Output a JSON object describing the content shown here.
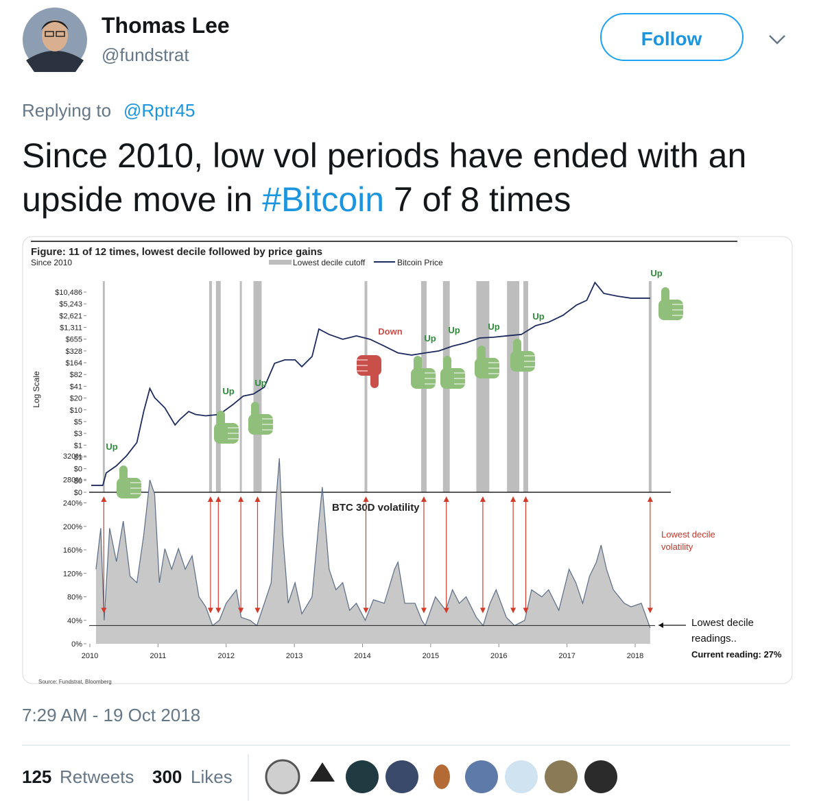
{
  "author": {
    "name": "Thomas Lee",
    "handle": "@fundstrat"
  },
  "follow_button": "Follow",
  "reply": {
    "prefix": "Replying to",
    "to": "@Rptr45"
  },
  "tweet_text": [
    "Since 2010, low vol periods have ended with an upside move in ",
    "#Bitcoin",
    " 7 of 8 times"
  ],
  "chart_data": {
    "type": "line",
    "title": "Figure: 11 of 12 times, lowest decile followed by price gains",
    "subtitle": "Since 2010",
    "y_label": "Log Scale",
    "source": "Source: Fundstrat, Bloomberg",
    "xlim": [
      2010,
      2018
    ],
    "xticks": [
      2010,
      2011,
      2012,
      2013,
      2014,
      2015,
      2016,
      2017,
      2018
    ],
    "log_scale": true,
    "ylim": [
      0.08,
      20000
    ],
    "yticks": [
      {
        "value": 10486,
        "label": "$10,486"
      },
      {
        "value": 5243,
        "label": "$5,243"
      },
      {
        "value": 2621.5,
        "label": "$2,621"
      },
      {
        "value": 1310.75,
        "label": "$1,311"
      },
      {
        "value": 655.375,
        "label": "$655"
      },
      {
        "value": 327.6875,
        "label": "$328"
      },
      {
        "value": 163.84375,
        "label": "$164"
      },
      {
        "value": 81.921875,
        "label": "$82"
      },
      {
        "value": 40.9609375,
        "label": "$41"
      },
      {
        "value": 20.48046875,
        "label": "$20"
      },
      {
        "value": 10.240234375,
        "label": "$10"
      },
      {
        "value": 5.1201171875,
        "label": "$5"
      },
      {
        "value": 2.56005859375,
        "label": "$3"
      },
      {
        "value": 1.280029296875,
        "label": "$1"
      },
      {
        "value": 0.6400146484375,
        "label": "$1"
      },
      {
        "value": 0.32000732421875,
        "label": "$0"
      },
      {
        "value": 0.160003662109375,
        "label": "$0"
      },
      {
        "value": 0.0800018310546875,
        "label": "$0"
      }
    ],
    "y2lim": [
      0,
      320
    ],
    "y2ticks": [
      {
        "value": 0,
        "label": "0%"
      },
      {
        "value": 40,
        "label": "40%"
      },
      {
        "value": 80,
        "label": "80%"
      },
      {
        "value": 120,
        "label": "120%"
      },
      {
        "value": 160,
        "label": "160%"
      },
      {
        "value": 200,
        "label": "200%"
      },
      {
        "value": 240,
        "label": "240%"
      },
      {
        "value": 280,
        "label": "280%"
      },
      {
        "value": 320,
        "label": "320%"
      }
    ],
    "series": [
      {
        "name": "Bitcoin Price",
        "color": "#1c2a5e",
        "x": [
          2010.02,
          2010.19,
          2010.24,
          2010.39,
          2010.54,
          2010.69,
          2010.79,
          2010.88,
          2010.95,
          2011.1,
          2011.25,
          2011.32,
          2011.45,
          2011.55,
          2011.7,
          2011.9,
          2012.1,
          2012.25,
          2012.4,
          2012.56,
          2012.71,
          2012.86,
          2013.01,
          2013.11,
          2013.26,
          2013.36,
          2013.51,
          2013.71,
          2013.91,
          2014.11,
          2014.32,
          2014.52,
          2014.72,
          2014.92,
          2015.12,
          2015.32,
          2015.52,
          2015.72,
          2015.92,
          2016.11,
          2016.33,
          2016.54,
          2016.73,
          2016.94,
          2017.14,
          2017.29,
          2017.41,
          2017.54,
          2017.74,
          2017.94,
          2018.22
        ],
        "values": [
          0.12,
          0.12,
          0.25,
          0.38,
          0.69,
          1.5,
          9.3,
          36,
          21,
          11.5,
          4.2,
          5.8,
          9.3,
          7.8,
          7.2,
          7.8,
          14,
          23,
          26,
          39,
          158,
          194,
          194,
          130,
          237,
          1188,
          865,
          652,
          795,
          652,
          435,
          292,
          257,
          292,
          328,
          435,
          532,
          701,
          734,
          795,
          865,
          1455,
          1780,
          2660,
          4890,
          6460,
          18400,
          9680,
          8230,
          7310,
          7310
        ]
      },
      {
        "name": "BTC 30D volatility",
        "color": "#5a6b86",
        "axis": "y2",
        "x": [
          2010.09,
          2010.16,
          2010.21,
          2010.29,
          2010.39,
          2010.49,
          2010.59,
          2010.69,
          2010.79,
          2010.88,
          2010.95,
          2011.02,
          2011.1,
          2011.2,
          2011.3,
          2011.4,
          2011.5,
          2011.6,
          2011.7,
          2011.8,
          2011.9,
          2012.0,
          2012.15,
          2012.22,
          2012.35,
          2012.45,
          2012.56,
          2012.66,
          2012.73,
          2012.78,
          2012.83,
          2012.91,
          2013.01,
          2013.11,
          2013.26,
          2013.36,
          2013.41,
          2013.51,
          2013.61,
          2013.71,
          2013.81,
          2013.91,
          2014.04,
          2014.16,
          2014.32,
          2014.47,
          2014.52,
          2014.62,
          2014.77,
          2014.87,
          2014.92,
          2015.07,
          2015.22,
          2015.32,
          2015.42,
          2015.52,
          2015.67,
          2015.77,
          2015.87,
          2015.96,
          2016.11,
          2016.23,
          2016.38,
          2016.48,
          2016.63,
          2016.73,
          2016.88,
          2017.03,
          2017.13,
          2017.23,
          2017.33,
          2017.43,
          2017.5,
          2017.58,
          2017.68,
          2017.84,
          2017.94,
          2018.09,
          2018.22
        ],
        "values": [
          127,
          197,
          40,
          197,
          140,
          209,
          115,
          104,
          185,
          279,
          255,
          104,
          162,
          127,
          162,
          127,
          150,
          80,
          63,
          31,
          40,
          69,
          92,
          45,
          40,
          31,
          69,
          104,
          244,
          316,
          185,
          69,
          104,
          51,
          80,
          209,
          267,
          127,
          92,
          104,
          57,
          69,
          40,
          75,
          69,
          127,
          139,
          69,
          69,
          40,
          31,
          80,
          57,
          92,
          69,
          80,
          45,
          31,
          69,
          92,
          45,
          31,
          40,
          92,
          80,
          92,
          57,
          127,
          104,
          69,
          115,
          139,
          168,
          127,
          92,
          69,
          63,
          69,
          27
        ]
      }
    ],
    "decile_periods": {
      "name": "Lowest decile cutoff",
      "color": "#bdbdbd",
      "ranges": [
        [
          2010.19,
          2010.22
        ],
        [
          2011.75,
          2011.79
        ],
        [
          2011.85,
          2011.92
        ],
        [
          2012.2,
          2012.23
        ],
        [
          2012.4,
          2012.52
        ],
        [
          2014.03,
          2014.07
        ],
        [
          2014.86,
          2014.94
        ],
        [
          2015.18,
          2015.28
        ],
        [
          2015.67,
          2015.86
        ],
        [
          2016.12,
          2016.3
        ],
        [
          2016.36,
          2016.43
        ],
        [
          2018.2,
          2018.24
        ]
      ]
    },
    "cutoff_value": 31,
    "annotations": [
      "Up",
      "Up",
      "Up",
      "Down",
      "Up",
      "Up",
      "Up",
      "Up",
      "Up"
    ],
    "notes": {
      "volatility": [
        "Lowest decile",
        "volatility"
      ],
      "readings": [
        "Lowest decile",
        "readings..",
        "Current reading: 27%"
      ]
    }
  },
  "timestamp": "7:29 AM - 19 Oct 2018",
  "stats": {
    "retweets": 125,
    "retweets_label": "Retweets",
    "likes": 300,
    "likes_label": "Likes"
  }
}
